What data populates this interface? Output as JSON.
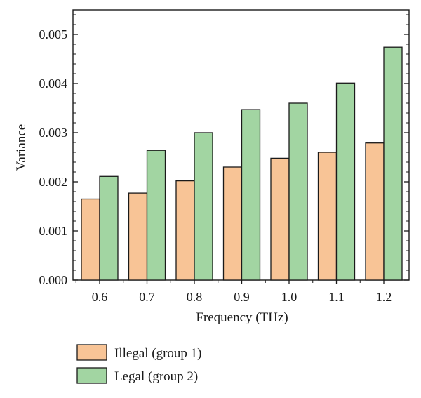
{
  "chart_data": {
    "type": "bar",
    "title": "",
    "xlabel": "Frequency (THz)",
    "ylabel": "Variance",
    "categories": [
      "0.6",
      "0.7",
      "0.8",
      "0.9",
      "1.0",
      "1.1",
      "1.2"
    ],
    "series": [
      {
        "name": "Illegal (group 1)",
        "color": "#f8c496",
        "values": [
          0.00165,
          0.00177,
          0.00202,
          0.0023,
          0.00248,
          0.0026,
          0.00279
        ]
      },
      {
        "name": "Legal (group 2)",
        "color": "#a2d5a2",
        "values": [
          0.00211,
          0.00264,
          0.003,
          0.00347,
          0.0036,
          0.00401,
          0.00474
        ]
      }
    ],
    "ylim": [
      0,
      0.0055
    ],
    "yticks": [
      "0.000",
      "0.001",
      "0.002",
      "0.003",
      "0.004",
      "0.005"
    ],
    "grid": false,
    "legend_position": "bottom"
  }
}
